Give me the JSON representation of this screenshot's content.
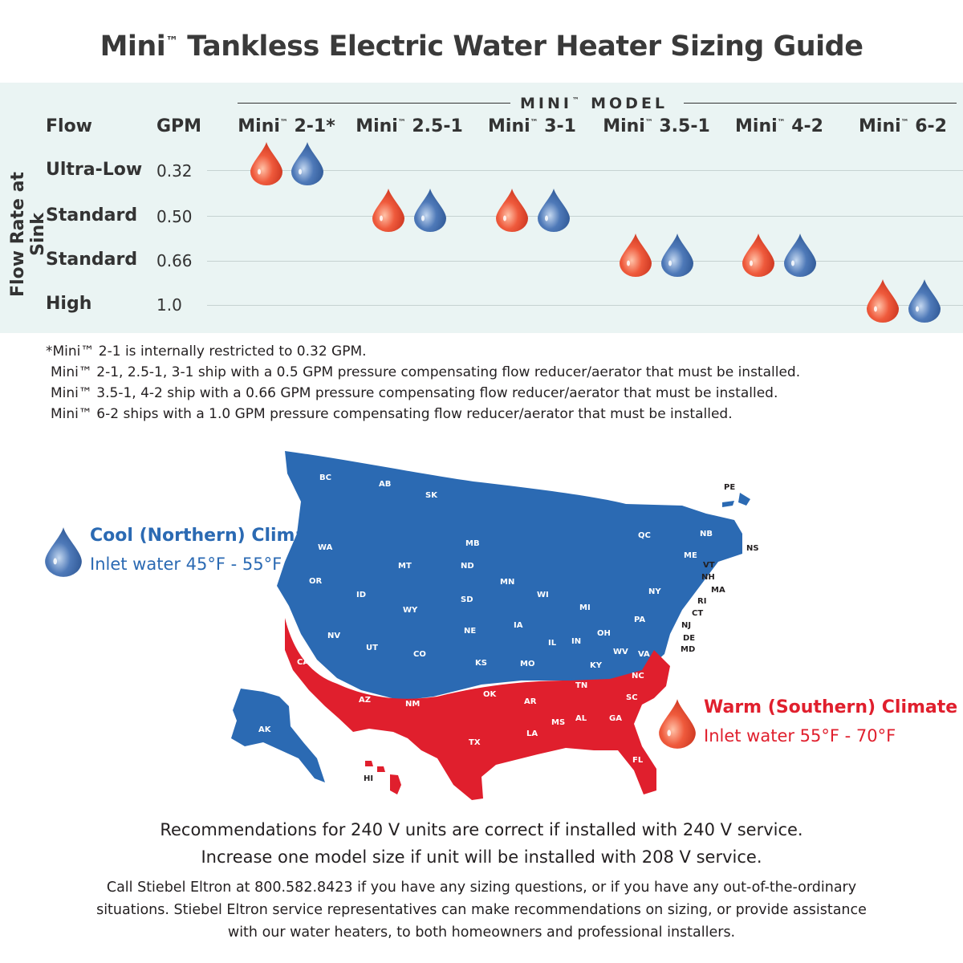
{
  "title": {
    "prefix": "Mini",
    "tm": "™",
    "rest": " Tankless Electric Water Heater Sizing Guide"
  },
  "vertical_label": "Flow Rate at Sink",
  "model_group": {
    "prefix": "MINI",
    "tm": "™",
    "rest": " MODEL"
  },
  "headers": {
    "flow": "Flow",
    "gpm": "GPM"
  },
  "models": [
    {
      "name": "Mini",
      "tm": "™",
      "size": " 2-1*"
    },
    {
      "name": "Mini",
      "tm": "™",
      "size": " 2.5-1"
    },
    {
      "name": "Mini",
      "tm": "™",
      "size": " 3-1"
    },
    {
      "name": "Mini",
      "tm": "™",
      "size": " 3.5-1"
    },
    {
      "name": "Mini",
      "tm": "™",
      "size": " 4-2"
    },
    {
      "name": "Mini",
      "tm": "™",
      "size": " 6-2"
    }
  ],
  "rows": [
    {
      "flow": "Ultra-Low",
      "gpm": "0.32",
      "models": [
        0
      ]
    },
    {
      "flow": "Standard",
      "gpm": "0.50",
      "models": [
        1,
        2
      ]
    },
    {
      "flow": "Standard",
      "gpm": "0.66",
      "models": [
        3,
        4
      ]
    },
    {
      "flow": "High",
      "gpm": "1.0",
      "models": [
        5
      ]
    }
  ],
  "notes": [
    "*Mini™ 2-1 is internally restricted to 0.32 GPM.",
    "Mini™ 2-1, 2.5-1, 3-1 ship with a 0.5 GPM pressure compensating flow reducer/aerator that must be installed.",
    "Mini™ 3.5-1, 4-2 ship with a 0.66 GPM pressure compensating flow reducer/aerator that must be installed.",
    "Mini™ 6-2 ships with a 1.0 GPM pressure compensating flow reducer/aerator that must be installed."
  ],
  "cool": {
    "title": "Cool (Northern) Climate",
    "inlet": "Inlet water 45°F - 55°F",
    "color": "#2b6ab3"
  },
  "warm": {
    "title": "Warm (Southern) Climate",
    "inlet": "Inlet water 55°F - 70°F",
    "color": "#e01f2d"
  },
  "drop_colors": {
    "hot": "#ef5a3c",
    "cold": "#4e79b8"
  },
  "map_labels": {
    "north": [
      "BC",
      "AB",
      "SK",
      "MB",
      "QC",
      "NB",
      "NS",
      "PE",
      "WA",
      "OR",
      "ID",
      "MT",
      "ND",
      "SD",
      "WY",
      "NE",
      "MN",
      "WI",
      "MI",
      "IA",
      "IL",
      "IN",
      "OH",
      "PA",
      "NY",
      "VT",
      "NH",
      "MA",
      "RI",
      "CT",
      "NJ",
      "DE",
      "MD",
      "ME",
      "NV",
      "UT",
      "CO",
      "KS",
      "MO",
      "KY",
      "WV",
      "VA",
      "AK"
    ],
    "south": [
      "CA",
      "AZ",
      "NM",
      "OK",
      "TX",
      "AR",
      "LA",
      "MS",
      "AL",
      "TN",
      "GA",
      "SC",
      "NC",
      "FL",
      "HI"
    ]
  },
  "footer": {
    "line1": "Recommendations for 240 V units are correct if installed with 240 V service.",
    "line2": "Increase one model size if unit will be installed with 208 V service.",
    "call1": "Call Stiebel Eltron at 800.582.8423 if you have any sizing questions, or if you have any out-of-the-ordinary",
    "call2": "situations. Stiebel Eltron service representatives can make recommendations on sizing, or provide assistance",
    "call3": "with our water heaters, to both homeowners and professional installers."
  }
}
